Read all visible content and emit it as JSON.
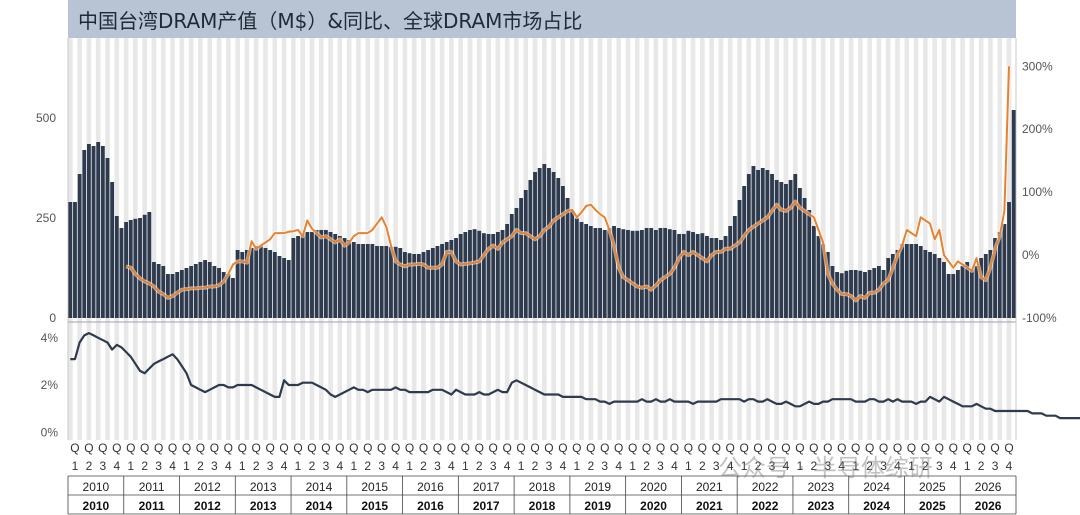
{
  "title": "中国台湾DRAM产值（M$）&同比、全球DRAM市场占比",
  "watermark": "公众号 · 半导体综研",
  "colors": {
    "bar": "#2e3a4d",
    "yoy": "#e8822f",
    "share": "#2e3a4d",
    "title_bg": "#b8c4d3",
    "grid_band": "#e8e8e8"
  },
  "chart_data": {
    "type": "bar+line",
    "x_axis": {
      "quarters_per_year": [
        "Q1",
        "Q2",
        "Q3",
        "Q4"
      ],
      "quarter_labels_top": [
        "Q",
        "Q",
        "Q",
        "Q"
      ],
      "quarter_labels_bottom": [
        "1",
        "2",
        "3",
        "4"
      ],
      "years": [
        "2010",
        "2011",
        "2012",
        "2013",
        "2014",
        "2015",
        "2016",
        "2017",
        "2018",
        "2019",
        "2020",
        "2021",
        "2022",
        "2023",
        "2024",
        "2025",
        "2026"
      ],
      "granularity": "month",
      "start": "2010-01",
      "end": "2026-12"
    },
    "panels": [
      {
        "name": "top",
        "left_axis": {
          "ticks": [
            "0",
            "250",
            "500"
          ],
          "tick_values": [
            0,
            250,
            500
          ],
          "ylim": [
            0,
            700
          ]
        },
        "right_axis": {
          "ticks": [
            "-100%",
            "0%",
            "100%",
            "200%",
            "300%"
          ],
          "tick_values": [
            -100,
            0,
            100,
            200,
            300
          ],
          "ylim": [
            -100,
            345
          ]
        },
        "series": [
          {
            "type": "bar",
            "axis": "left",
            "start": "2010-01",
            "values": [
              290,
              290,
              360,
              420,
              435,
              430,
              440,
              430,
              400,
              340,
              255,
              225,
              240,
              245,
              248,
              250,
              258,
              265,
              140,
              135,
              130,
              110,
              110,
              115,
              120,
              125,
              130,
              135,
              140,
              145,
              140,
              130,
              125,
              115,
              110,
              100,
              170,
              165,
              170,
              175,
              180,
              180,
              175,
              170,
              165,
              155,
              150,
              145,
              200,
              205,
              210,
              215,
              215,
              220,
              220,
              220,
              215,
              210,
              205,
              200,
              195,
              190,
              185,
              185,
              185,
              185,
              180,
              180,
              180,
              178,
              178,
              175,
              165,
              162,
              160,
              160,
              165,
              170,
              175,
              180,
              185,
              190,
              195,
              200,
              210,
              215,
              220,
              222,
              218,
              212,
              210,
              210,
              215,
              220,
              235,
              260,
              275,
              300,
              320,
              345,
              365,
              375,
              385,
              375,
              365,
              350,
              330,
              300,
              270,
              250,
              240,
              235,
              230,
              225,
              225,
              220,
              225,
              230,
              225,
              222,
              220,
              218,
              218,
              220,
              225,
              225,
              220,
              225,
              225,
              222,
              220,
              210,
              210,
              218,
              215,
              210,
              212,
              205,
              200,
              200,
              195,
              205,
              230,
              255,
              295,
              330,
              360,
              380,
              370,
              375,
              370,
              360,
              345,
              340,
              335,
              345,
              360,
              325,
              300,
              270,
              230,
              205,
              185,
              165,
              130,
              115,
              112,
              118,
              120,
              120,
              118,
              115,
              120,
              125,
              130,
              120,
              150,
              160,
              170,
              185,
              185,
              185,
              185,
              180,
              170,
              165,
              160,
              150,
              140,
              110,
              110,
              120,
              130,
              140,
              120,
              130,
              150,
              160,
              170,
              200,
              215,
              235,
              290,
              520
            ]
          },
          {
            "type": "line",
            "axis": "right",
            "name": "YoY",
            "start": "2011-01",
            "values": [
              -18,
              -20,
              -30,
              -37,
              -42,
              -45,
              -50,
              -58,
              -62,
              -68,
              -65,
              -60,
              -55,
              -54,
              -53,
              -53,
              -52,
              -52,
              -50,
              -50,
              -48,
              -42,
              -30,
              -15,
              -10,
              -10,
              -12,
              22,
              10,
              15,
              20,
              25,
              35,
              35,
              35,
              37,
              38,
              40,
              30,
              55,
              42,
              35,
              28,
              30,
              25,
              20,
              25,
              15,
              20,
              30,
              35,
              35,
              35,
              40,
              50,
              60,
              45,
              15,
              -10,
              -15,
              -18,
              -15,
              -15,
              -14,
              -15,
              -20,
              -20,
              -20,
              -15,
              5,
              5,
              -10,
              -15,
              -14,
              -13,
              -12,
              -10,
              0,
              10,
              15,
              10,
              20,
              25,
              30,
              40,
              35,
              35,
              30,
              25,
              30,
              40,
              45,
              55,
              60,
              65,
              70,
              72,
              60,
              68,
              78,
              80,
              72,
              65,
              60,
              40,
              15,
              -20,
              -35,
              -40,
              -45,
              -50,
              -52,
              -50,
              -55,
              -48,
              -40,
              -35,
              -30,
              -20,
              -5,
              5,
              0,
              5,
              0,
              -5,
              -10,
              0,
              5,
              5,
              10,
              10,
              15,
              20,
              30,
              40,
              45,
              50,
              55,
              60,
              70,
              80,
              72,
              70,
              75,
              85,
              75,
              70,
              65,
              60,
              40,
              20,
              -30,
              -45,
              -55,
              -62,
              -62,
              -65,
              -72,
              -65,
              -68,
              -60,
              -60,
              -55,
              -45,
              -40,
              -20,
              0,
              15,
              40,
              35,
              30,
              60,
              55,
              50,
              25,
              40,
              0,
              -10,
              -20,
              -10,
              -15,
              -20,
              -25,
              -5,
              -35,
              -40,
              -20,
              10,
              30,
              70,
              300
            ]
          }
        ]
      },
      {
        "name": "bottom",
        "axis": {
          "ticks": [
            "0%",
            "2%",
            "4%"
          ],
          "tick_values": [
            0,
            2,
            4
          ],
          "ylim": [
            -0.2,
            4.5
          ]
        },
        "series": [
          {
            "type": "line",
            "name": "Global DRAM market share",
            "start": "2010-01",
            "values": [
              3.1,
              3.1,
              3.8,
              4.1,
              4.2,
              4.1,
              4.0,
              3.9,
              3.8,
              3.5,
              3.7,
              3.6,
              3.4,
              3.2,
              2.9,
              2.6,
              2.5,
              2.7,
              2.9,
              3.0,
              3.1,
              3.2,
              3.3,
              3.1,
              2.8,
              2.5,
              2.0,
              1.9,
              1.8,
              1.7,
              1.8,
              1.9,
              2.0,
              2.0,
              1.9,
              1.9,
              2.0,
              2.0,
              2.0,
              2.0,
              1.9,
              1.8,
              1.7,
              1.6,
              1.5,
              1.5,
              2.2,
              2.0,
              2.0,
              2.0,
              2.1,
              2.1,
              2.1,
              2.0,
              1.9,
              1.8,
              1.6,
              1.5,
              1.6,
              1.7,
              1.8,
              1.9,
              1.8,
              1.8,
              1.7,
              1.8,
              1.8,
              1.8,
              1.8,
              1.8,
              1.9,
              1.8,
              1.8,
              1.7,
              1.7,
              1.7,
              1.7,
              1.7,
              1.8,
              1.8,
              1.8,
              1.7,
              1.6,
              1.8,
              1.7,
              1.6,
              1.6,
              1.6,
              1.7,
              1.6,
              1.6,
              1.7,
              1.8,
              1.7,
              1.7,
              2.1,
              2.2,
              2.1,
              2.0,
              1.9,
              1.8,
              1.7,
              1.6,
              1.6,
              1.6,
              1.6,
              1.5,
              1.5,
              1.5,
              1.5,
              1.5,
              1.4,
              1.4,
              1.4,
              1.3,
              1.3,
              1.2,
              1.3,
              1.3,
              1.3,
              1.3,
              1.3,
              1.3,
              1.4,
              1.3,
              1.3,
              1.4,
              1.3,
              1.3,
              1.4,
              1.3,
              1.3,
              1.3,
              1.3,
              1.2,
              1.3,
              1.3,
              1.3,
              1.3,
              1.3,
              1.4,
              1.4,
              1.4,
              1.4,
              1.4,
              1.3,
              1.4,
              1.4,
              1.3,
              1.3,
              1.4,
              1.3,
              1.2,
              1.2,
              1.3,
              1.2,
              1.1,
              1.1,
              1.2,
              1.3,
              1.2,
              1.2,
              1.3,
              1.3,
              1.4,
              1.4,
              1.4,
              1.4,
              1.4,
              1.3,
              1.3,
              1.3,
              1.4,
              1.4,
              1.3,
              1.3,
              1.4,
              1.3,
              1.4,
              1.3,
              1.3,
              1.3,
              1.2,
              1.3,
              1.3,
              1.5,
              1.4,
              1.3,
              1.5,
              1.4,
              1.3,
              1.2,
              1.1,
              1.1,
              1.1,
              1.2,
              1.1,
              1.0,
              1.0,
              0.9,
              0.9,
              0.9,
              0.9,
              0.9,
              0.9,
              0.9,
              0.9,
              0.8,
              0.8,
              0.8,
              0.7,
              0.7,
              0.7,
              0.6,
              0.6,
              0.6,
              0.6,
              0.6,
              0.6,
              0.6,
              0.6,
              0.5,
              0.5,
              0.5,
              0.6,
              0.6,
              0.7,
              0.8,
              0.9
            ]
          }
        ]
      }
    ]
  }
}
